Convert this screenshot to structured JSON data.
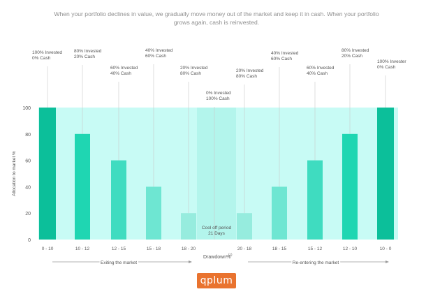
{
  "subtitle": "When your portfolio declines in value, we gradually move money out of the market and keep it in cash. When your portfolio grows again, cash is reinvested.",
  "logo_text": "qplum",
  "colors": {
    "background_band": "#c8fbf5",
    "cooloff_band": "#b3f5ec",
    "bar_dark": "#13c7a4",
    "bar_100": "#0cbf9a",
    "bar_80": "#1fd6b2",
    "bar_60": "#3fdcc0",
    "bar_40": "#6ee6d2",
    "bar_20": "#96ecde",
    "axis": "#999999",
    "text": "#555555",
    "subtitle": "#8f8f8f",
    "logo_bg": "#e9732f"
  },
  "chart_data": {
    "type": "bar",
    "title": "",
    "xlabel": "Drawdown%",
    "xlabel_superscript": "(1)",
    "ylabel": "Allocation to market %",
    "ylim": [
      0,
      100
    ],
    "yticks": [
      0,
      20,
      40,
      60,
      80,
      100
    ],
    "grid": false,
    "categories": [
      "0 - 10",
      "10 - 12",
      "12 - 15",
      "15 - 18",
      "18 - 20",
      "",
      "20 - 18",
      "18 - 15",
      "15 - 12",
      "12 - 10",
      "10 - 0"
    ],
    "values": [
      100,
      80,
      60,
      40,
      20,
      0,
      20,
      40,
      60,
      80,
      100
    ],
    "annotations": [
      [
        "100% Invested",
        "0% Cash"
      ],
      [
        "80% Invested",
        "20% Cash"
      ],
      [
        "60% Invested",
        "40% Cash"
      ],
      [
        "40% Invested",
        "60% Cash"
      ],
      [
        "20% Invested",
        "80% Cash"
      ],
      [
        "0% Invested",
        "100% Cash"
      ],
      [
        "20% Invested",
        "80% Cash"
      ],
      [
        "40% Invested",
        "60% Cash"
      ],
      [
        "60% Invested",
        "40% Cash"
      ],
      [
        "80% Invested",
        "20% Cash"
      ],
      [
        "100% Invester",
        "0% Cash"
      ]
    ],
    "cooloff_label": [
      "Cool off period",
      "21 Days"
    ],
    "phase_labels": [
      "Exiting the market",
      "Re-entering the market"
    ]
  }
}
